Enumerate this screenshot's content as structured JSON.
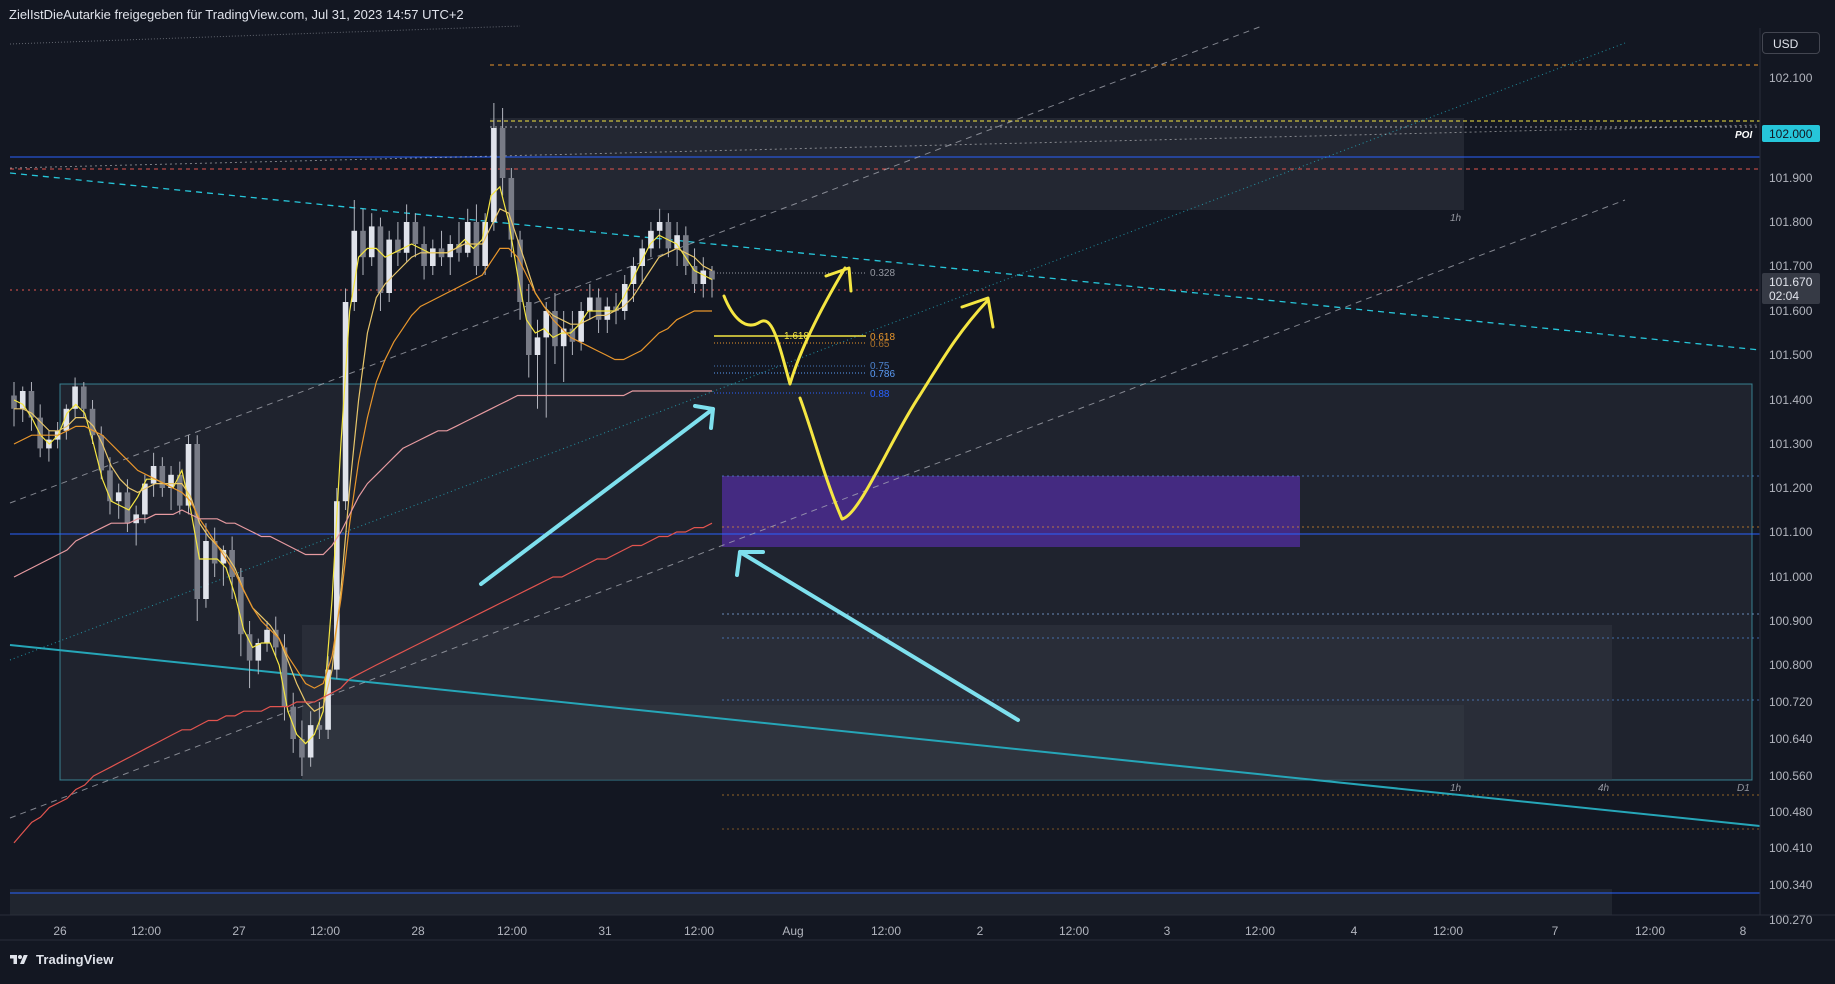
{
  "header": {
    "title": "ZielIstDieAutarkie freigegeben für TradingView.com, Jul 31, 2023 14:57 UTC+2"
  },
  "currency_button": "USD",
  "brand": "TradingView",
  "colors": {
    "background": "#131722",
    "accent_cyan": "#26c6da",
    "drawing_yellow": "#f5e642",
    "drawing_cyan": "#7ee0ee",
    "zone_purple": "#4b2c8f",
    "ma_red": "#e2544f",
    "ma_orange": "#e8962c",
    "ma_pink": "#e69aa0"
  },
  "chart_data": {
    "type": "candlestick",
    "symbol_currency": "USD",
    "y_axis": {
      "ticks": [
        102.1,
        101.9,
        101.8,
        101.7,
        101.6,
        101.5,
        101.4,
        101.3,
        101.2,
        101.1,
        101.0,
        100.9,
        100.8,
        100.72,
        100.64,
        100.56,
        100.48,
        100.41,
        100.34,
        100.27
      ],
      "tick_labels": [
        "102.100",
        "101.900",
        "101.800",
        "101.700",
        "101.600",
        "101.500",
        "101.400",
        "101.300",
        "101.200",
        "101.100",
        "101.000",
        "100.900",
        "100.800",
        "100.720",
        "100.640",
        "100.560",
        "100.480",
        "100.410",
        "100.340",
        "100.270"
      ],
      "scale": "non-uniform"
    },
    "x_axis": {
      "tick_labels": [
        "26",
        "12:00",
        "27",
        "12:00",
        "28",
        "12:00",
        "31",
        "12:00",
        "Aug",
        "12:00",
        "2",
        "12:00",
        "3",
        "12:00",
        "4",
        "12:00",
        "7",
        "12:00",
        "8"
      ]
    },
    "price_labels": {
      "poi_label": "POI",
      "poi_price": "102.000",
      "last_price": "101.670",
      "countdown": "02:04"
    },
    "fib_labels": [
      "0.328",
      "1.618",
      "0.618",
      "0.65",
      "0.75",
      "0.786",
      "0.88"
    ],
    "zone_labels": [
      "1h",
      "1h",
      "4h",
      "D1"
    ],
    "candles": [
      {
        "o": 101.41,
        "h": 101.44,
        "l": 101.34,
        "c": 101.38
      },
      {
        "o": 101.38,
        "h": 101.43,
        "l": 101.35,
        "c": 101.42
      },
      {
        "o": 101.42,
        "h": 101.44,
        "l": 101.33,
        "c": 101.36
      },
      {
        "o": 101.36,
        "h": 101.39,
        "l": 101.27,
        "c": 101.29
      },
      {
        "o": 101.29,
        "h": 101.33,
        "l": 101.26,
        "c": 101.31
      },
      {
        "o": 101.31,
        "h": 101.35,
        "l": 101.29,
        "c": 101.33
      },
      {
        "o": 101.33,
        "h": 101.39,
        "l": 101.31,
        "c": 101.38
      },
      {
        "o": 101.38,
        "h": 101.45,
        "l": 101.36,
        "c": 101.43
      },
      {
        "o": 101.43,
        "h": 101.44,
        "l": 101.36,
        "c": 101.38
      },
      {
        "o": 101.38,
        "h": 101.4,
        "l": 101.3,
        "c": 101.32
      },
      {
        "o": 101.32,
        "h": 101.34,
        "l": 101.22,
        "c": 101.24
      },
      {
        "o": 101.24,
        "h": 101.27,
        "l": 101.14,
        "c": 101.17
      },
      {
        "o": 101.17,
        "h": 101.21,
        "l": 101.13,
        "c": 101.19
      },
      {
        "o": 101.19,
        "h": 101.22,
        "l": 101.1,
        "c": 101.12
      },
      {
        "o": 101.12,
        "h": 101.16,
        "l": 101.07,
        "c": 101.14
      },
      {
        "o": 101.14,
        "h": 101.23,
        "l": 101.12,
        "c": 101.21
      },
      {
        "o": 101.21,
        "h": 101.28,
        "l": 101.18,
        "c": 101.25
      },
      {
        "o": 101.25,
        "h": 101.27,
        "l": 101.18,
        "c": 101.2
      },
      {
        "o": 101.2,
        "h": 101.25,
        "l": 101.15,
        "c": 101.23
      },
      {
        "o": 101.23,
        "h": 101.26,
        "l": 101.14,
        "c": 101.16
      },
      {
        "o": 101.16,
        "h": 101.32,
        "l": 101.14,
        "c": 101.3
      },
      {
        "o": 101.3,
        "h": 101.32,
        "l": 100.9,
        "c": 100.95
      },
      {
        "o": 100.95,
        "h": 101.12,
        "l": 100.93,
        "c": 101.08
      },
      {
        "o": 101.08,
        "h": 101.11,
        "l": 101.0,
        "c": 101.03
      },
      {
        "o": 101.03,
        "h": 101.07,
        "l": 100.98,
        "c": 101.06
      },
      {
        "o": 101.06,
        "h": 101.09,
        "l": 100.95,
        "c": 101.0
      },
      {
        "o": 101.0,
        "h": 101.02,
        "l": 100.82,
        "c": 100.87
      },
      {
        "o": 100.87,
        "h": 100.9,
        "l": 100.75,
        "c": 100.81
      },
      {
        "o": 100.81,
        "h": 100.86,
        "l": 100.78,
        "c": 100.85
      },
      {
        "o": 100.85,
        "h": 100.9,
        "l": 100.83,
        "c": 100.88
      },
      {
        "o": 100.88,
        "h": 100.91,
        "l": 100.82,
        "c": 100.84
      },
      {
        "o": 100.84,
        "h": 100.87,
        "l": 100.68,
        "c": 100.71
      },
      {
        "o": 100.71,
        "h": 100.74,
        "l": 100.61,
        "c": 100.64
      },
      {
        "o": 100.64,
        "h": 100.68,
        "l": 100.56,
        "c": 100.6
      },
      {
        "o": 100.6,
        "h": 100.7,
        "l": 100.58,
        "c": 100.67
      },
      {
        "o": 100.67,
        "h": 100.72,
        "l": 100.64,
        "c": 100.66
      },
      {
        "o": 100.66,
        "h": 100.82,
        "l": 100.64,
        "c": 100.79
      },
      {
        "o": 100.79,
        "h": 101.2,
        "l": 100.77,
        "c": 101.17
      },
      {
        "o": 101.17,
        "h": 101.65,
        "l": 101.15,
        "c": 101.62
      },
      {
        "o": 101.62,
        "h": 101.85,
        "l": 101.6,
        "c": 101.78
      },
      {
        "o": 101.78,
        "h": 101.83,
        "l": 101.68,
        "c": 101.72
      },
      {
        "o": 101.72,
        "h": 101.82,
        "l": 101.7,
        "c": 101.79
      },
      {
        "o": 101.79,
        "h": 101.81,
        "l": 101.6,
        "c": 101.64
      },
      {
        "o": 101.64,
        "h": 101.78,
        "l": 101.62,
        "c": 101.76
      },
      {
        "o": 101.76,
        "h": 101.8,
        "l": 101.7,
        "c": 101.73
      },
      {
        "o": 101.73,
        "h": 101.84,
        "l": 101.71,
        "c": 101.8
      },
      {
        "o": 101.8,
        "h": 101.82,
        "l": 101.72,
        "c": 101.75
      },
      {
        "o": 101.75,
        "h": 101.79,
        "l": 101.67,
        "c": 101.7
      },
      {
        "o": 101.7,
        "h": 101.76,
        "l": 101.68,
        "c": 101.74
      },
      {
        "o": 101.74,
        "h": 101.78,
        "l": 101.7,
        "c": 101.72
      },
      {
        "o": 101.72,
        "h": 101.77,
        "l": 101.68,
        "c": 101.75
      },
      {
        "o": 101.75,
        "h": 101.8,
        "l": 101.71,
        "c": 101.73
      },
      {
        "o": 101.73,
        "h": 101.83,
        "l": 101.72,
        "c": 101.8
      },
      {
        "o": 101.8,
        "h": 101.84,
        "l": 101.68,
        "c": 101.7
      },
      {
        "o": 101.7,
        "h": 101.82,
        "l": 101.68,
        "c": 101.8
      },
      {
        "o": 101.8,
        "h": 102.05,
        "l": 101.78,
        "c": 102.0
      },
      {
        "o": 102.0,
        "h": 102.04,
        "l": 101.86,
        "c": 101.9
      },
      {
        "o": 101.9,
        "h": 101.92,
        "l": 101.72,
        "c": 101.76
      },
      {
        "o": 101.76,
        "h": 101.78,
        "l": 101.58,
        "c": 101.62
      },
      {
        "o": 101.62,
        "h": 101.66,
        "l": 101.45,
        "c": 101.5
      },
      {
        "o": 101.5,
        "h": 101.58,
        "l": 101.38,
        "c": 101.54
      },
      {
        "o": 101.54,
        "h": 101.62,
        "l": 101.36,
        "c": 101.6
      },
      {
        "o": 101.6,
        "h": 101.64,
        "l": 101.48,
        "c": 101.52
      },
      {
        "o": 101.52,
        "h": 101.6,
        "l": 101.44,
        "c": 101.56
      },
      {
        "o": 101.56,
        "h": 101.6,
        "l": 101.5,
        "c": 101.53
      },
      {
        "o": 101.53,
        "h": 101.62,
        "l": 101.51,
        "c": 101.6
      },
      {
        "o": 101.6,
        "h": 101.66,
        "l": 101.58,
        "c": 101.63
      },
      {
        "o": 101.63,
        "h": 101.65,
        "l": 101.55,
        "c": 101.58
      },
      {
        "o": 101.58,
        "h": 101.63,
        "l": 101.55,
        "c": 101.61
      },
      {
        "o": 101.61,
        "h": 101.64,
        "l": 101.57,
        "c": 101.6
      },
      {
        "o": 101.6,
        "h": 101.68,
        "l": 101.58,
        "c": 101.66
      },
      {
        "o": 101.66,
        "h": 101.72,
        "l": 101.62,
        "c": 101.7
      },
      {
        "o": 101.7,
        "h": 101.76,
        "l": 101.66,
        "c": 101.74
      },
      {
        "o": 101.74,
        "h": 101.8,
        "l": 101.72,
        "c": 101.78
      },
      {
        "o": 101.78,
        "h": 101.83,
        "l": 101.74,
        "c": 101.8
      },
      {
        "o": 101.8,
        "h": 101.82,
        "l": 101.72,
        "c": 101.74
      },
      {
        "o": 101.74,
        "h": 101.8,
        "l": 101.7,
        "c": 101.77
      },
      {
        "o": 101.77,
        "h": 101.79,
        "l": 101.68,
        "c": 101.7
      },
      {
        "o": 101.7,
        "h": 101.74,
        "l": 101.64,
        "c": 101.66
      },
      {
        "o": 101.66,
        "h": 101.72,
        "l": 101.63,
        "c": 101.69
      },
      {
        "o": 101.69,
        "h": 101.7,
        "l": 101.63,
        "c": 101.67
      }
    ],
    "moving_averages": [
      {
        "color": "#f5e642",
        "values": [
          101.4,
          101.39,
          101.36,
          101.32,
          101.3,
          101.32,
          101.37,
          101.39,
          101.37,
          101.3,
          101.22,
          101.17,
          101.16,
          101.15,
          101.18,
          101.22,
          101.22,
          101.21,
          101.2,
          101.24,
          101.15,
          101.04,
          101.04,
          101.04,
          101.02,
          100.96,
          100.88,
          100.84,
          100.85,
          100.85,
          100.8,
          100.7,
          100.65,
          100.63,
          100.65,
          100.7,
          100.95,
          101.3,
          101.6,
          101.72,
          101.74,
          101.74,
          101.72,
          101.73,
          101.74,
          101.75,
          101.74,
          101.73,
          101.73,
          101.73,
          101.74,
          101.76,
          101.74,
          101.76,
          101.86,
          101.88,
          101.8,
          101.68,
          101.58,
          101.55,
          101.56,
          101.54,
          101.55,
          101.55,
          101.57,
          101.6,
          101.6,
          101.6,
          101.6,
          101.63,
          101.67,
          101.71,
          101.75,
          101.77,
          101.76,
          101.75,
          101.72,
          101.69,
          101.68,
          101.67
        ]
      },
      {
        "color": "#e8c66a",
        "values": [
          101.38,
          101.38,
          101.37,
          101.35,
          101.33,
          101.33,
          101.34,
          101.36,
          101.36,
          101.34,
          101.3,
          101.25,
          101.22,
          101.2,
          101.19,
          101.2,
          101.21,
          101.21,
          101.21,
          101.21,
          101.18,
          101.12,
          101.09,
          101.07,
          101.05,
          101.02,
          100.97,
          100.93,
          100.91,
          100.89,
          100.86,
          100.81,
          100.76,
          100.72,
          100.7,
          100.71,
          100.79,
          100.97,
          101.2,
          101.4,
          101.55,
          101.63,
          101.66,
          101.68,
          101.7,
          101.72,
          101.73,
          101.73,
          101.73,
          101.73,
          101.74,
          101.75,
          101.75,
          101.75,
          101.79,
          101.83,
          101.82,
          101.76,
          101.7,
          101.64,
          101.61,
          101.59,
          101.58,
          101.57,
          101.57,
          101.58,
          101.59,
          101.59,
          101.6,
          101.61,
          101.63,
          101.66,
          101.69,
          101.72,
          101.73,
          101.74,
          101.73,
          101.72,
          101.7,
          101.69
        ]
      },
      {
        "color": "#e8962c",
        "values": [
          101.3,
          101.31,
          101.32,
          101.32,
          101.32,
          101.32,
          101.33,
          101.34,
          101.34,
          101.33,
          101.32,
          101.3,
          101.28,
          101.26,
          101.24,
          101.23,
          101.22,
          101.21,
          101.2,
          101.19,
          101.17,
          101.13,
          101.1,
          101.07,
          101.04,
          101.01,
          100.97,
          100.93,
          100.9,
          100.88,
          100.86,
          100.82,
          100.79,
          100.76,
          100.75,
          100.76,
          100.82,
          100.95,
          101.12,
          101.26,
          101.36,
          101.44,
          101.49,
          101.53,
          101.56,
          101.59,
          101.61,
          101.62,
          101.63,
          101.64,
          101.65,
          101.66,
          101.67,
          101.68,
          101.71,
          101.74,
          101.74,
          101.72,
          101.68,
          101.64,
          101.61,
          101.58,
          101.56,
          101.54,
          101.53,
          101.52,
          101.51,
          101.5,
          101.49,
          101.49,
          101.5,
          101.51,
          101.53,
          101.55,
          101.56,
          101.58,
          101.59,
          101.6,
          101.6,
          101.6
        ]
      },
      {
        "color": "#e69aa0",
        "values": [
          101.0,
          101.01,
          101.02,
          101.03,
          101.04,
          101.05,
          101.06,
          101.08,
          101.09,
          101.1,
          101.11,
          101.12,
          101.12,
          101.12,
          101.13,
          101.13,
          101.14,
          101.14,
          101.14,
          101.15,
          101.14,
          101.13,
          101.13,
          101.13,
          101.12,
          101.12,
          101.11,
          101.1,
          101.09,
          101.09,
          101.08,
          101.07,
          101.06,
          101.05,
          101.05,
          101.05,
          101.07,
          101.1,
          101.14,
          101.18,
          101.21,
          101.23,
          101.25,
          101.27,
          101.29,
          101.3,
          101.31,
          101.32,
          101.33,
          101.33,
          101.34,
          101.35,
          101.36,
          101.37,
          101.38,
          101.39,
          101.4,
          101.41,
          101.41,
          101.41,
          101.41,
          101.41,
          101.41,
          101.41,
          101.41,
          101.41,
          101.41,
          101.41,
          101.41,
          101.41,
          101.42,
          101.42,
          101.42,
          101.42,
          101.42,
          101.42,
          101.42,
          101.42,
          101.42,
          101.42
        ]
      },
      {
        "color": "#e2544f",
        "values": [
          100.42,
          100.44,
          100.46,
          100.47,
          100.49,
          100.5,
          100.51,
          100.53,
          100.54,
          100.56,
          100.57,
          100.58,
          100.59,
          100.6,
          100.61,
          100.62,
          100.63,
          100.64,
          100.65,
          100.66,
          100.66,
          100.67,
          100.68,
          100.68,
          100.69,
          100.69,
          100.7,
          100.7,
          100.7,
          100.71,
          100.71,
          100.71,
          100.72,
          100.72,
          100.72,
          100.73,
          100.74,
          100.75,
          100.77,
          100.78,
          100.79,
          100.8,
          100.81,
          100.82,
          100.83,
          100.84,
          100.85,
          100.86,
          100.87,
          100.88,
          100.89,
          100.9,
          100.91,
          100.92,
          100.93,
          100.94,
          100.95,
          100.96,
          100.97,
          100.98,
          100.99,
          101.0,
          101.0,
          101.01,
          101.02,
          101.03,
          101.04,
          101.04,
          101.05,
          101.06,
          101.07,
          101.07,
          101.08,
          101.09,
          101.09,
          101.1,
          101.1,
          101.11,
          101.11,
          101.12
        ]
      }
    ]
  }
}
